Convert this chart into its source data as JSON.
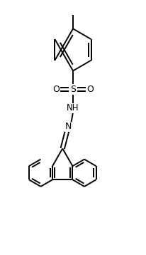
{
  "bg_color": "#ffffff",
  "line_color": "#000000",
  "line_width": 1.4,
  "figsize": [
    2.06,
    3.58
  ],
  "dpi": 100,
  "xlim": [
    -4.5,
    4.5
  ],
  "ylim": [
    -7.5,
    7.5
  ]
}
